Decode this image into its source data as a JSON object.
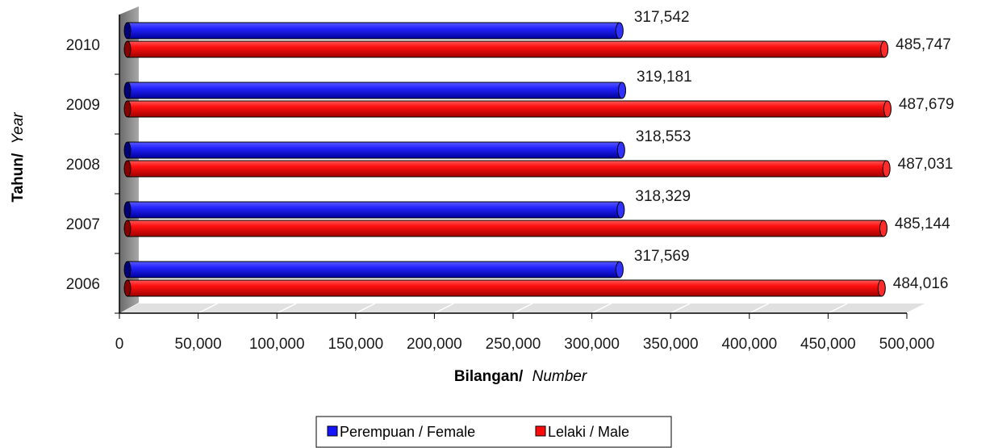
{
  "chart_data": {
    "type": "bar",
    "orientation": "horizontal",
    "style": "3d-cylinder",
    "categories": [
      "2010",
      "2009",
      "2008",
      "2007",
      "2006"
    ],
    "series": [
      {
        "name": "Perempuan / Female",
        "color": "#1414ff",
        "values": [
          317542,
          319181,
          318553,
          318329,
          317569
        ]
      },
      {
        "name": "Lelaki / Male",
        "color": "#ff0a0a",
        "values": [
          485747,
          487679,
          487031,
          485144,
          484016
        ]
      }
    ],
    "data_labels": {
      "Perempuan / Female": [
        "317,542",
        "319,181",
        "318,553",
        "318,329",
        "317,569"
      ],
      "Lelaki / Male": [
        "485,747",
        "487,679",
        "487,031",
        "485,144",
        "484,016"
      ]
    },
    "x_ticks": [
      "0",
      "50,000",
      "100,000",
      "150,000",
      "200,000",
      "250,000",
      "300,000",
      "350,000",
      "400,000",
      "450,000",
      "500,000"
    ],
    "xlim": [
      0,
      500000
    ],
    "xlabel": {
      "bold": "Bilangan/",
      "italic": "Number"
    },
    "ylabel": {
      "bold": "Tahun/",
      "italic": "Year"
    },
    "legend": {
      "position": "bottom"
    }
  }
}
